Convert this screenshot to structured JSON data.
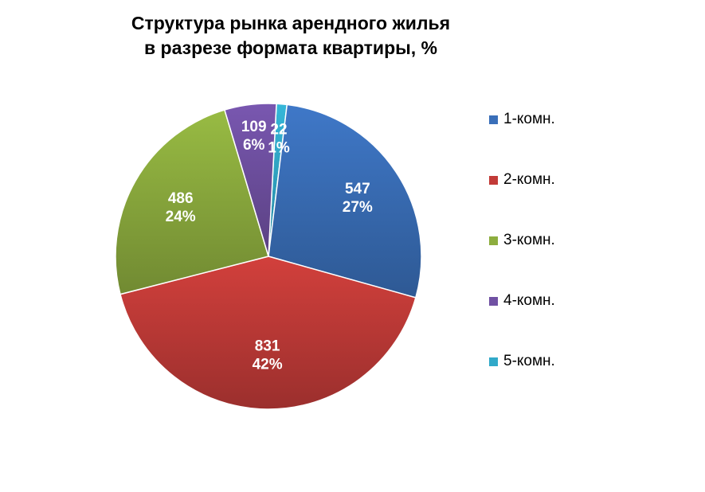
{
  "chart_data": {
    "type": "pie",
    "title": [
      "Структура рынка арендного жилья",
      "в разрезе формата квартиры, %"
    ],
    "slices": [
      {
        "name": "1-комн.",
        "value": 547,
        "percent": "27%",
        "color": "#3a6fb9"
      },
      {
        "name": "2-комн.",
        "value": 831,
        "percent": "42%",
        "color": "#c23b38"
      },
      {
        "name": "3-комн.",
        "value": 486,
        "percent": "24%",
        "color": "#8dad3e"
      },
      {
        "name": "4-комн.",
        "value": 109,
        "percent": "6%",
        "color": "#7051a3"
      },
      {
        "name": "5-комн.",
        "value": 22,
        "percent": "1%",
        "color": "#31a9c9"
      }
    ],
    "legend_position": "right",
    "start_slice": "5-комн.",
    "direction": "clockwise"
  }
}
